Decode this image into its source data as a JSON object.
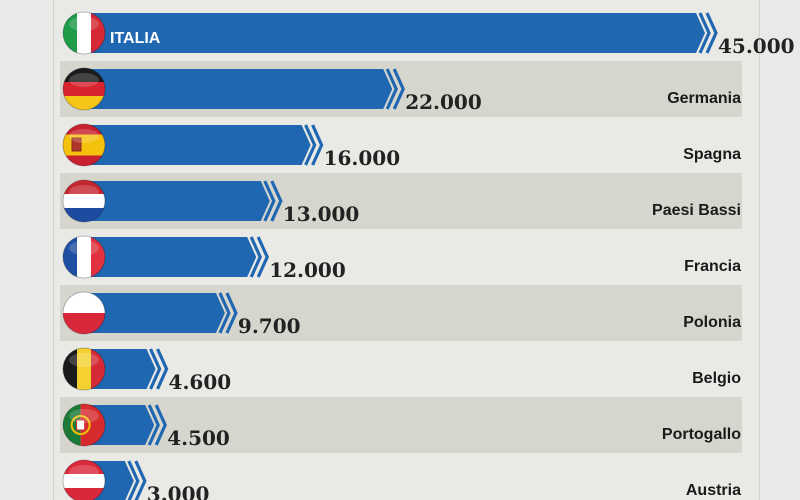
{
  "colors": {
    "bar": "#1f67b1",
    "band": "#d6d6cf",
    "background": "#e9e9e6"
  },
  "chart_data": {
    "type": "bar",
    "orientation": "horizontal",
    "title": "",
    "xlabel": "",
    "ylabel": "",
    "xlim": [
      0,
      45000
    ],
    "categories": [
      "ITALIA",
      "Germania",
      "Spagna",
      "Paesi Bassi",
      "Francia",
      "Polonia",
      "Belgio",
      "Portogallo",
      "Austria"
    ],
    "values": [
      45000,
      22000,
      16000,
      13000,
      12000,
      9700,
      4600,
      4500,
      3000
    ],
    "value_labels": [
      "45.000",
      "22.000",
      "16.000",
      "13.000",
      "12.000",
      "9.700",
      "4.600",
      "4.500",
      "3.000"
    ],
    "flags": [
      "italy-flag",
      "germany-flag",
      "spain-flag",
      "netherlands-flag",
      "france-flag",
      "poland-flag",
      "belgium-flag",
      "portugal-flag",
      "austria-flag"
    ]
  }
}
